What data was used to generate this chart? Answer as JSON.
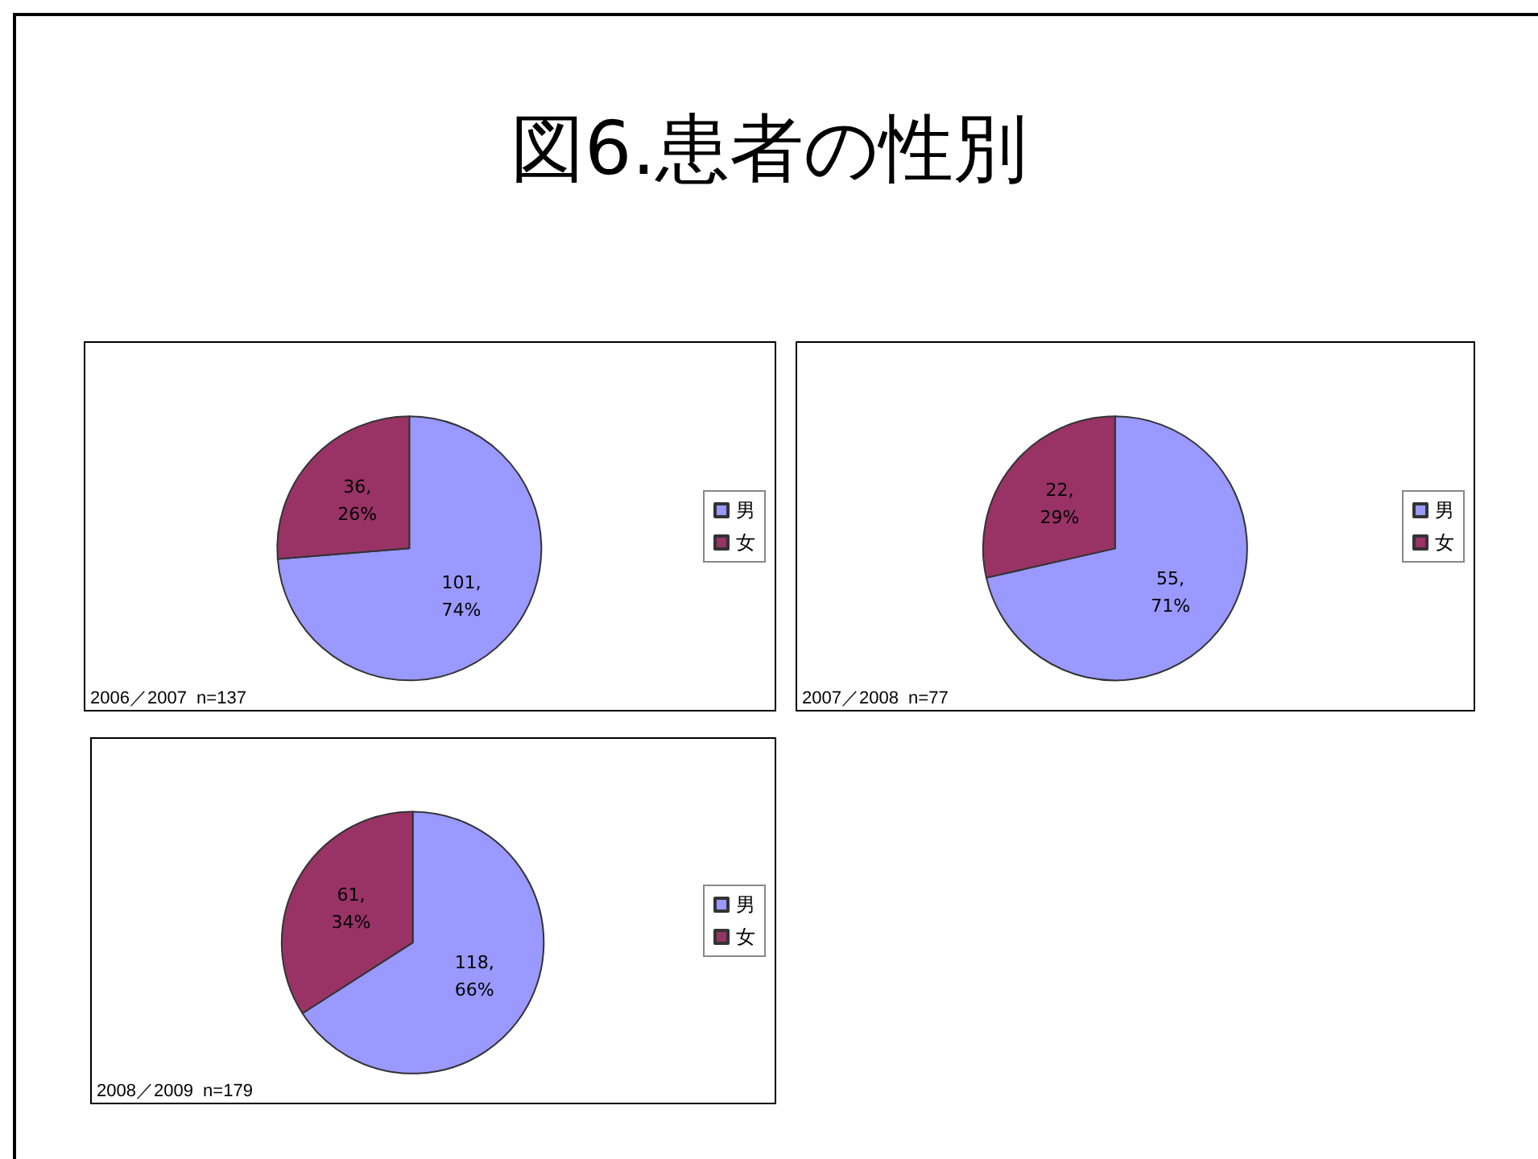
{
  "chart_data": [
    {
      "type": "pie",
      "title": "図6.患者の性別",
      "categories": [
        "男",
        "女"
      ],
      "values": [
        101,
        36
      ],
      "colors": [
        "#9999ff",
        "#993366"
      ],
      "value_labels": [
        "101,\n74%",
        "36,\n26%"
      ],
      "legend": "right",
      "annotations": [
        "2006／2007  n=137"
      ]
    },
    {
      "type": "pie",
      "categories": [
        "男",
        "女"
      ],
      "values": [
        55,
        22
      ],
      "colors": [
        "#9999ff",
        "#993366"
      ],
      "value_labels": [
        "55,\n71%",
        "22,\n29%"
      ],
      "legend": "right",
      "annotations": [
        "2007／2008  n=77"
      ]
    },
    {
      "type": "pie",
      "categories": [
        "男",
        "女"
      ],
      "values": [
        118,
        61
      ],
      "colors": [
        "#9999ff",
        "#993366"
      ],
      "value_labels": [
        "118,\n66%",
        "61,\n34%"
      ],
      "legend": "right",
      "annotations": [
        "2008／2009  n=179"
      ]
    }
  ]
}
